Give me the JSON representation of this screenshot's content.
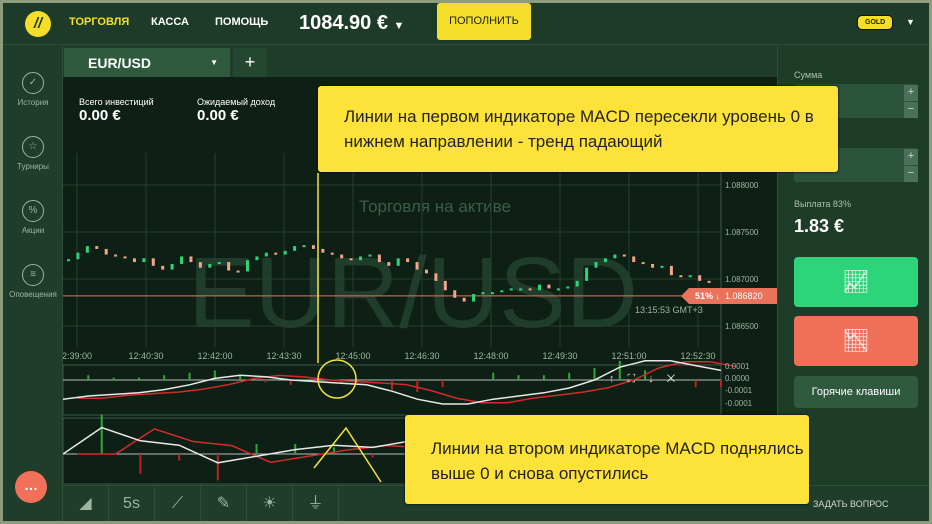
{
  "header": {
    "logo": "logo",
    "nav": [
      "ТОРГОВЛЯ",
      "КАССА",
      "ПОМОЩЬ"
    ],
    "balance": "1084.90 €",
    "topup": "ПОПОЛНИТЬ",
    "account_badge": "GOLD"
  },
  "sidebar": {
    "items": [
      {
        "label": "История",
        "icon": "check-circle-icon"
      },
      {
        "label": "Турниры",
        "icon": "trophy-icon"
      },
      {
        "label": "Акции",
        "icon": "percent-icon"
      },
      {
        "label": "Оповещения",
        "icon": "list-icon"
      }
    ]
  },
  "tabs": {
    "asset": "EUR/USD",
    "add": "+"
  },
  "stats": {
    "invest_label": "Всего инвестиций",
    "invest_value": "0.00 €",
    "income_label": "Ожидаемый доход",
    "income_value": "0.00 €"
  },
  "chart": {
    "watermark": "EUR/USD",
    "watermark_sub": "Торговля на активе",
    "price_ticks": [
      "1.088000",
      "1.087500",
      "1.087000",
      "1.086500"
    ],
    "time_ticks": [
      "2:39:00",
      "12:40:30",
      "12:42:00",
      "12:43:30",
      "12:45:00",
      "12:46:30",
      "12:48:00",
      "12:49:30",
      "12:51:00",
      "12:52:30"
    ],
    "current_price": "1.086820",
    "current_pct": "51% ↓",
    "clock": "13:15:53 GMT+3",
    "macd_ticks": [
      "0.0001",
      "0.0000",
      "-0.0001",
      "-0.0001"
    ],
    "colors": {
      "up": "#2ed47a",
      "down": "#f2a58a",
      "signal": "#d22b2b",
      "macd": "#e8e8e8",
      "price_line": "#e8735a"
    }
  },
  "chart_data": {
    "type": "candlestick",
    "price_closes": [
      1.08721,
      1.08728,
      1.08735,
      1.08732,
      1.08726,
      1.08724,
      1.08722,
      1.08718,
      1.08722,
      1.08714,
      1.0871,
      1.08716,
      1.08724,
      1.08718,
      1.08712,
      1.08716,
      1.08718,
      1.08709,
      1.08708,
      1.0872,
      1.08724,
      1.08728,
      1.08726,
      1.0873,
      1.08735,
      1.08736,
      1.08732,
      1.08728,
      1.08726,
      1.08722,
      1.0872,
      1.08724,
      1.08726,
      1.08718,
      1.08714,
      1.08722,
      1.08718,
      1.0871,
      1.08706,
      1.08698,
      1.08688,
      1.0868,
      1.08676,
      1.08684,
      1.08686,
      1.08686,
      1.08688,
      1.0869,
      1.0869,
      1.08688,
      1.08694,
      1.0869,
      1.0869,
      1.08692,
      1.08698,
      1.08712,
      1.08718,
      1.08722,
      1.08726,
      1.08724,
      1.08718,
      1.08716,
      1.08712,
      1.08714,
      1.08704,
      1.08702,
      1.08704,
      1.08698,
      1.08696
    ],
    "macd1": [
      -0.00012,
      -0.0001,
      -9e-05,
      -8e-05,
      -6e-05,
      -3e-05,
      1e-05,
      3e-05,
      2e-05,
      0,
      -1e-05,
      -2e-05,
      -3e-05,
      -7e-05,
      -0.00012,
      -0.00015,
      -0.00015,
      -0.00012,
      -0.0001,
      -8e-05,
      -5e-05,
      0,
      8e-05,
      0.00012,
      0.00012,
      9e-05,
      6e-05
    ],
    "macd2": [
      0,
      0.00012,
      6e-05,
      4e-05,
      -4e-05,
      -1e-05,
      2e-05,
      4e-05,
      3e-05,
      6e-05,
      4e-05,
      2e-05,
      -4e-05,
      -3e-05,
      -2e-05,
      0,
      1e-05,
      -4e-05
    ]
  },
  "indicator_controls": [
    "↑",
    "⛶",
    "↓",
    "✕"
  ],
  "right": {
    "amount_label": "Сумма",
    "payout_label": "Выплата 83%",
    "payout_value": "1.83 €",
    "hotkeys": "Горячие клавиши",
    "ask": "ЗАДАТЬ ВОПРОС",
    "up_color": "#2ed47a",
    "down_color": "#f0705a"
  },
  "toolbar": {
    "items": [
      "area-chart-icon",
      "5s",
      "indicators-icon",
      "drawing-icon",
      "brightness-icon",
      "plug-icon"
    ]
  },
  "callouts": {
    "first": "Линии на первом индикаторе MACD пересекли уровень 0 в нижнем направлении - тренд падающий",
    "second": "Линии на втором индикаторе MACD поднялись выше 0 и снова опустились"
  }
}
